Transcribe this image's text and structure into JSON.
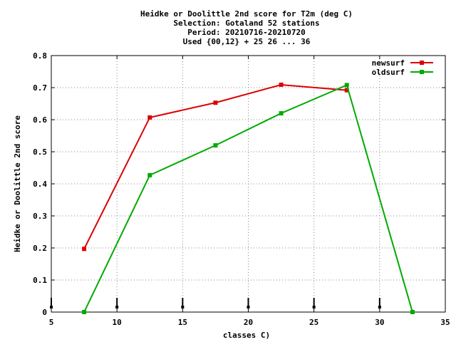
{
  "chart_data": {
    "type": "line",
    "title": [
      "Heidke or Doolittle 2nd score  for T2m (deg C)",
      "Selection: Gotaland     52 stations",
      "Period: 20210716-20210720",
      "Used {00,12} + 25 26 ... 36"
    ],
    "xlabel": "classes C)",
    "ylabel": "Heidke or Doolittle 2nd score",
    "xlim": [
      5,
      35
    ],
    "ylim": [
      0,
      0.8
    ],
    "xticks": [
      5,
      10,
      15,
      20,
      25,
      30,
      35
    ],
    "yticks": [
      0,
      0.1,
      0.2,
      0.3,
      0.4,
      0.5,
      0.6,
      0.7,
      0.8
    ],
    "xtick_labels": [
      "5",
      "10",
      "15",
      "20",
      "25",
      "30",
      "35"
    ],
    "ytick_labels": [
      "0",
      "0.1",
      "0.2",
      "0.3",
      "0.4",
      "0.5",
      "0.6",
      "0.7",
      "0.8"
    ],
    "grid": true,
    "legend_position": "top-right",
    "series": [
      {
        "name": "newsurf",
        "color": "#dd0000",
        "x": [
          7.5,
          12.5,
          17.5,
          22.5,
          27.5
        ],
        "y": [
          0.197,
          0.607,
          0.653,
          0.709,
          0.692
        ]
      },
      {
        "name": "oldsurf",
        "color": "#00aa00",
        "x": [
          7.5,
          12.5,
          17.5,
          22.5,
          27.5,
          32.5
        ],
        "y": [
          0.0,
          0.427,
          0.52,
          0.62,
          0.708,
          0.0
        ]
      }
    ],
    "class_markers": {
      "x": [
        5,
        10,
        15,
        20,
        25,
        30
      ]
    }
  }
}
